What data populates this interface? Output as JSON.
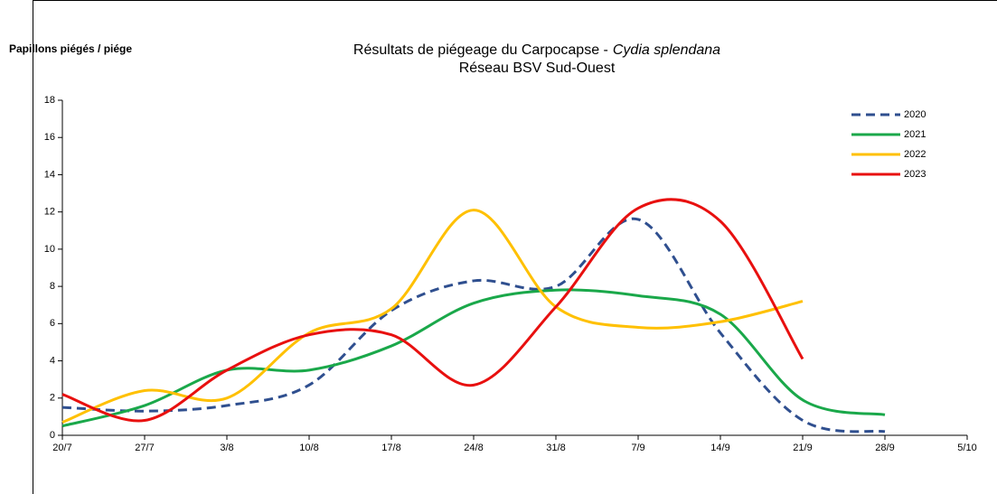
{
  "chart_data": {
    "type": "line",
    "y_axis_label": "Papillons piégés / piége",
    "title": "Résultats de piégeage du Carpocapse -",
    "title_italic": "Cydia splendana",
    "subtitle": "Réseau BSV Sud-Ouest",
    "categories": [
      "20/7",
      "27/7",
      "3/8",
      "10/8",
      "17/8",
      "24/8",
      "31/8",
      "7/9",
      "14/9",
      "21/9",
      "28/9",
      "5/10"
    ],
    "ylim": [
      0,
      18
    ],
    "yticks": [
      0,
      2,
      4,
      6,
      8,
      10,
      12,
      14,
      16,
      18
    ],
    "grid": false,
    "legend": "upper right",
    "series": [
      {
        "name": "2020",
        "color": "#2f4f8f",
        "dashed": true,
        "values": [
          1.5,
          1.3,
          1.6,
          2.7,
          6.7,
          8.3,
          8.0,
          11.6,
          5.5,
          0.8,
          0.2,
          null
        ]
      },
      {
        "name": "2021",
        "color": "#1aa84a",
        "dashed": false,
        "values": [
          0.5,
          1.6,
          3.5,
          3.5,
          4.8,
          7.1,
          7.8,
          7.5,
          6.5,
          1.9,
          1.1,
          null
        ]
      },
      {
        "name": "2022",
        "color": "#ffc000",
        "dashed": false,
        "values": [
          0.7,
          2.4,
          2.0,
          5.5,
          6.8,
          12.1,
          6.9,
          5.8,
          6.1,
          7.2,
          null,
          null
        ]
      },
      {
        "name": "2023",
        "color": "#e8100f",
        "dashed": false,
        "values": [
          2.2,
          0.8,
          3.5,
          5.4,
          5.4,
          2.7,
          6.9,
          12.2,
          11.5,
          4.1,
          null,
          null
        ]
      }
    ]
  }
}
